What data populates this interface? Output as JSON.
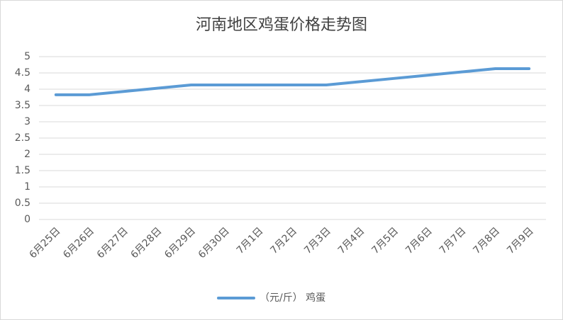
{
  "chart_data": {
    "type": "line",
    "title": "河南地区鸡蛋价格走势图",
    "categories": [
      "6月25日",
      "6月26日",
      "6月27日",
      "6月28日",
      "6月29日",
      "6月30日",
      "7月1日",
      "7月2日",
      "7月3日",
      "7月4日",
      "7月5日",
      "7月6日",
      "7月7日",
      "7月8日",
      "7月9日"
    ],
    "series": [
      {
        "name": "（元/斤） 鸡蛋",
        "color": "#5b9bd5",
        "values": [
          3.83,
          3.83,
          3.93,
          4.03,
          4.13,
          4.13,
          4.13,
          4.13,
          4.13,
          4.23,
          4.33,
          4.43,
          4.53,
          4.63,
          4.63
        ]
      }
    ],
    "ylim": [
      0,
      5
    ],
    "yticks": [
      0,
      0.5,
      1,
      1.5,
      2,
      2.5,
      3,
      3.5,
      4,
      4.5,
      5
    ],
    "grid": true,
    "legend": "bottom"
  }
}
